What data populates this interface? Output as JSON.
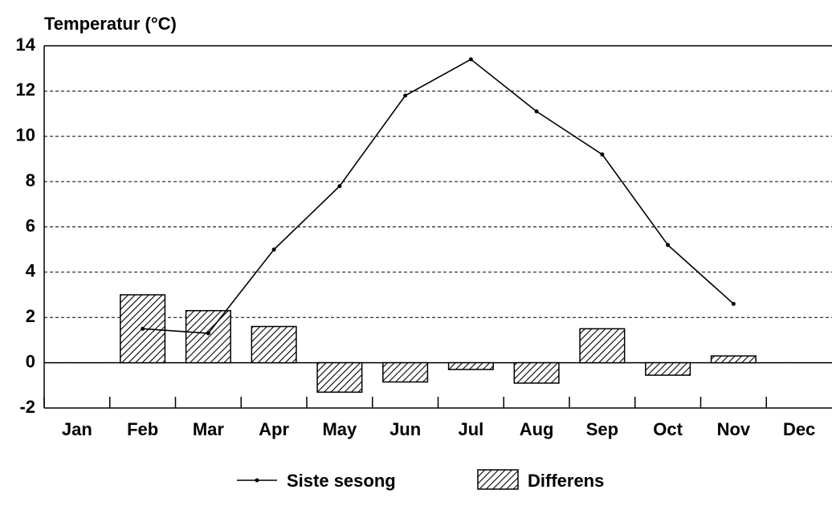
{
  "chart_data": {
    "type": "bar+line",
    "y_label": "Temperatur (°C)",
    "categories": [
      "Jan",
      "Feb",
      "Mar",
      "Apr",
      "May",
      "Jun",
      "Jul",
      "Aug",
      "Sep",
      "Oct",
      "Nov",
      "Dec"
    ],
    "series": [
      {
        "name": "Siste sesong",
        "type": "line",
        "color": "#000000",
        "values": [
          null,
          1.5,
          1.3,
          5.0,
          7.8,
          11.8,
          13.4,
          11.1,
          9.2,
          5.2,
          2.6,
          null
        ]
      },
      {
        "name": "Differens",
        "type": "bar",
        "color": "#000000",
        "values": [
          null,
          3.0,
          2.3,
          1.6,
          -1.3,
          -0.85,
          -0.3,
          -0.9,
          1.5,
          -0.55,
          0.3,
          null
        ]
      }
    ],
    "ylim": [
      -2,
      14
    ],
    "yticks": [
      -2,
      0,
      2,
      4,
      6,
      8,
      10,
      12,
      14
    ],
    "grid": true
  }
}
